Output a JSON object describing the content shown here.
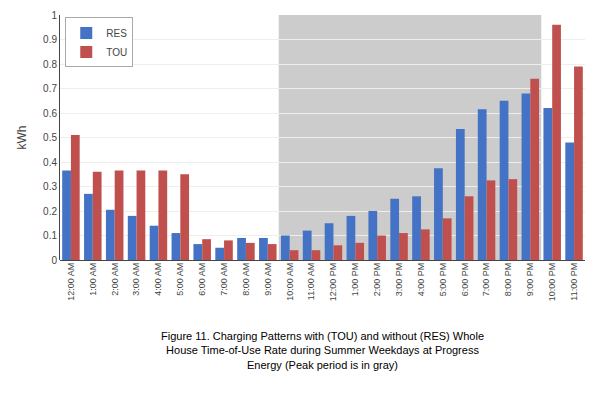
{
  "chart_data": {
    "type": "bar",
    "title": "Figure 11. Charging Patterns with (TOU) and without (RES) Whole\nHouse Time-of-Use Rate during Summer Weekdays at Progress\nEnergy (Peak period is in gray)",
    "categories": [
      "12:00 AM",
      "1:00 AM",
      "2:00 AM",
      "3:00 AM",
      "4:00 AM",
      "5:00 AM",
      "6:00 AM",
      "7:00 AM",
      "8:00 AM",
      "9:00 AM",
      "10:00 AM",
      "11:00 AM",
      "12:00 PM",
      "1:00 PM",
      "2:00 PM",
      "3:00 PM",
      "4:00 PM",
      "5:00 PM",
      "6:00 PM",
      "7:00 PM",
      "8:00 PM",
      "9:00 PM",
      "10:00 PM",
      "11:00 PM"
    ],
    "series": [
      {
        "name": "RES",
        "color": "#4472C4",
        "values": [
          0.365,
          0.27,
          0.205,
          0.18,
          0.14,
          0.11,
          0.065,
          0.05,
          0.09,
          0.09,
          0.1,
          0.12,
          0.15,
          0.18,
          0.2,
          0.25,
          0.26,
          0.375,
          0.535,
          0.615,
          0.65,
          0.68,
          0.62,
          0.48
        ]
      },
      {
        "name": "TOU",
        "color": "#C0504D",
        "values": [
          0.51,
          0.36,
          0.365,
          0.365,
          0.365,
          0.35,
          0.085,
          0.08,
          0.07,
          0.065,
          0.04,
          0.04,
          0.06,
          0.07,
          0.1,
          0.11,
          0.125,
          0.17,
          0.26,
          0.325,
          0.33,
          0.74,
          0.96,
          0.79
        ]
      }
    ],
    "ylabel": "kWh",
    "ylim": [
      0,
      1.0
    ],
    "yticks": [
      0,
      0.1,
      0.2,
      0.3,
      0.4,
      0.5,
      0.6,
      0.7,
      0.8,
      0.9,
      1
    ],
    "grid": true,
    "legend": "upper left",
    "highlight": {
      "from": "10:00 AM",
      "to": "9:00 PM",
      "color": "#CCCCCC"
    }
  }
}
